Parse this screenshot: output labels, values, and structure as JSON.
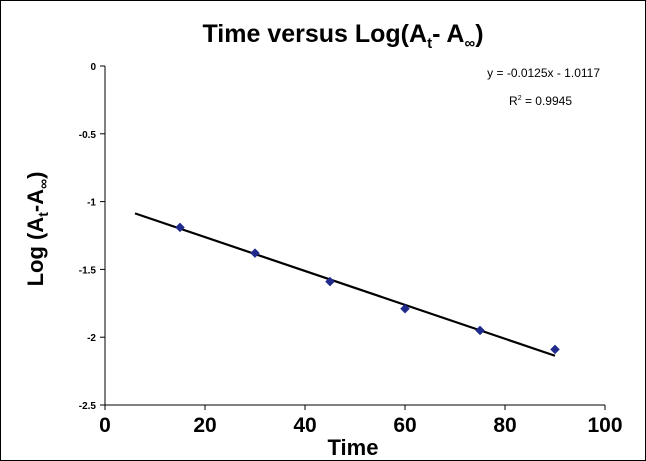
{
  "chart_data": {
    "type": "scatter",
    "title": {
      "prefix": "Time versus Log(A",
      "sub1": "t",
      "middle": "- A",
      "sub2": "∞",
      "suffix": ")"
    },
    "xlabel": "Time",
    "ylabel": {
      "prefix": "Log (A",
      "sub1": "t",
      "middle": "-A",
      "sub2": "∞",
      "suffix": ")"
    },
    "xlim": [
      0,
      100
    ],
    "ylim": [
      -2.5,
      0
    ],
    "x_ticks": [
      0,
      20,
      40,
      60,
      80,
      100
    ],
    "x_tick_labels": [
      "0",
      "20",
      "40",
      "60",
      "80",
      "100"
    ],
    "y_ticks": [
      0,
      -0.5,
      -1,
      -1.5,
      -2,
      -2.5
    ],
    "y_tick_labels": [
      "0",
      "-0.5",
      "-1",
      "-1.5",
      "-2",
      "-2.5"
    ],
    "grid": false,
    "series": [
      {
        "x": [
          15,
          30,
          45,
          60,
          75,
          90
        ],
        "y": [
          -1.19,
          -1.38,
          -1.59,
          -1.79,
          -1.95,
          -2.09
        ],
        "color": "#1f2a8c",
        "marker": "diamond"
      }
    ],
    "trendline": {
      "slope": -0.0125,
      "intercept": -1.0117,
      "x_range": [
        6,
        90
      ],
      "color": "#000000",
      "equation": "y = -0.0125x - 1.0117",
      "r2_label": "R",
      "r2_sup": "2",
      "r2_value": " = 0.9945"
    }
  }
}
